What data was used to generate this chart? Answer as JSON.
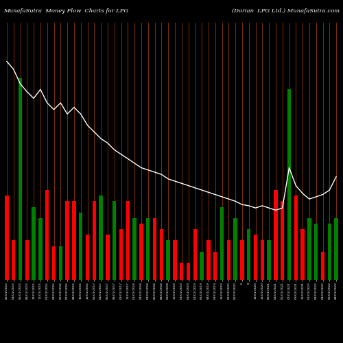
{
  "title_left": "MunafaSutra  Money Flow  Charts for LPG",
  "title_right": "(Dorian  LPG Ltd.) MunafaSutra.com",
  "background_color": "#000000",
  "bar_colors": [
    "red",
    "red",
    "green",
    "red",
    "green",
    "green",
    "red",
    "red",
    "green",
    "red",
    "red",
    "green",
    "red",
    "red",
    "green",
    "red",
    "green",
    "red",
    "red",
    "green",
    "red",
    "green",
    "red",
    "red",
    "green",
    "red",
    "red",
    "red",
    "red",
    "green",
    "red",
    "red",
    "green",
    "red",
    "green",
    "red",
    "green",
    "red",
    "red",
    "green",
    "red",
    "red",
    "green",
    "red",
    "red",
    "green",
    "green",
    "red",
    "green",
    "green"
  ],
  "bar_heights": [
    75,
    35,
    180,
    35,
    65,
    55,
    80,
    30,
    30,
    70,
    70,
    60,
    40,
    70,
    75,
    40,
    70,
    45,
    70,
    55,
    50,
    55,
    55,
    45,
    35,
    35,
    15,
    15,
    45,
    25,
    35,
    25,
    65,
    35,
    55,
    35,
    45,
    40,
    35,
    35,
    80,
    70,
    170,
    75,
    45,
    55,
    50,
    25,
    50,
    55
  ],
  "line_y": [
    195,
    188,
    175,
    168,
    162,
    170,
    158,
    152,
    158,
    148,
    154,
    148,
    138,
    132,
    126,
    122,
    116,
    112,
    108,
    104,
    100,
    98,
    96,
    94,
    90,
    88,
    86,
    84,
    82,
    80,
    78,
    76,
    74,
    72,
    70,
    67,
    66,
    64,
    66,
    64,
    62,
    64,
    100,
    84,
    77,
    72,
    74,
    76,
    80,
    92
  ],
  "x_labels": [
    "02/01/2015",
    "04/01/2015",
    "06/01/2015",
    "08/01/2015",
    "10/01/2015",
    "11/01/2015",
    "01/01/2016",
    "03/01/2016",
    "05/01/2016",
    "07/01/2016",
    "08/01/2016",
    "10/01/2016",
    "12/01/2016",
    "02/01/2017",
    "04/01/2017",
    "06/01/2017",
    "08/01/2017",
    "09/01/2017",
    "11/01/2017",
    "01/01/2018",
    "03/01/2018",
    "04/01/2018",
    "06/01/2018",
    "08/01/2018",
    "09/01/2018",
    "11/01/2018",
    "01/01/2019",
    "03/01/2019",
    "04/01/2019",
    "06/01/2019",
    "08/01/2019",
    "09/01/2019",
    "11/01/2019",
    "01/01/2020",
    "02/01/2020",
    "6",
    "8",
    "10/01/2020",
    "12/01/2020",
    "02/01/2021",
    "04/01/2021",
    "05/01/2021",
    "07/01/2021",
    "09/01/2021",
    "11/01/2021",
    "01/01/2022",
    "03/01/2022",
    "04/01/2022",
    "06/01/2022",
    "08/01/2022"
  ],
  "vline_color": "#7B3300",
  "line_color": "#ffffff",
  "figsize": [
    5.0,
    5.0
  ],
  "dpi": 100
}
